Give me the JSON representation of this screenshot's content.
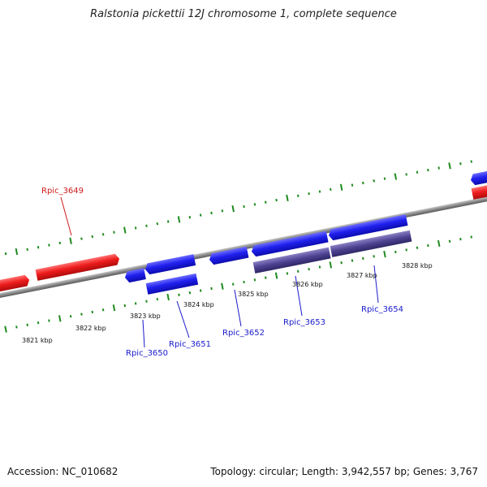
{
  "title": "Ralstonia pickettii 12J chromosome 1, complete sequence",
  "footer": {
    "accession": "Accession: NC_010682",
    "summary": "Topology: circular; Length: 3,942,557 bp; Genes: 3,767"
  },
  "colors": {
    "forward_gene": "#1e1ee6",
    "reverse_gene": "#e51a1a",
    "cds_feature": "#4a3f8c",
    "backbone": "#8a8a8a",
    "tick": "#1f8a1f",
    "gene_label": "#1a1acc",
    "highlight_label": "#cc1a1a"
  },
  "scale_ticks": [
    "3821 kbp",
    "3822 kbp",
    "3823 kbp",
    "3824 kbp",
    "3825 kbp",
    "3826 kbp",
    "3827 kbp",
    "3828 kbp"
  ],
  "genes": [
    {
      "label": "Rpic_3649",
      "strand": "reverse"
    },
    {
      "label": "Rpic_3650",
      "strand": "forward"
    },
    {
      "label": "Rpic_3651",
      "strand": "forward"
    },
    {
      "label": "Rpic_3652",
      "strand": "forward"
    },
    {
      "label": "Rpic_3653",
      "strand": "forward"
    },
    {
      "label": "Rpic_3654",
      "strand": "forward"
    }
  ]
}
